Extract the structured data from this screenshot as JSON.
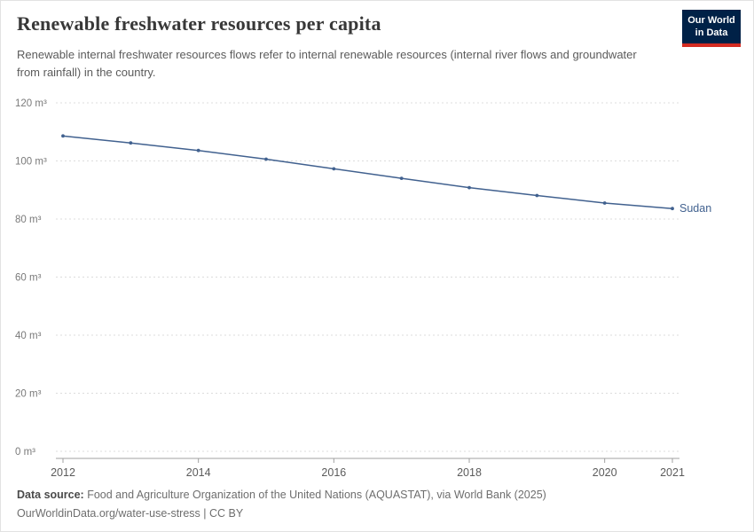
{
  "header": {
    "title": "Renewable freshwater resources per capita",
    "subtitle": "Renewable internal freshwater resources flows refer to internal renewable resources (internal river flows and groundwater from rainfall) in the country.",
    "logo": {
      "line1": "Our World",
      "line2": "in Data",
      "bg_color": "#002147",
      "accent_color": "#d42b21"
    }
  },
  "chart_data": {
    "type": "line",
    "title": "Renewable freshwater resources per capita",
    "x": [
      2012,
      2013,
      2014,
      2015,
      2016,
      2017,
      2018,
      2019,
      2020,
      2021
    ],
    "series": [
      {
        "name": "Sudan",
        "color": "#41618f",
        "values": [
          108.6,
          106.2,
          103.6,
          100.6,
          97.3,
          94.0,
          90.8,
          88.1,
          85.5,
          83.6
        ]
      }
    ],
    "xlabel": "",
    "ylabel": "",
    "ylim": [
      0,
      120
    ],
    "yticks": [
      0,
      20,
      40,
      60,
      80,
      100,
      120
    ],
    "ytick_suffix": " m³",
    "xticks": [
      2012,
      2014,
      2016,
      2018,
      2020,
      2021
    ],
    "grid": true,
    "gridline_color": "#dcdcdc",
    "axis_color": "#a0a0a0",
    "legend_position": "end-of-line"
  },
  "footer": {
    "source_label": "Data source:",
    "source_text": " Food and Agriculture Organization of the United Nations (AQUASTAT), via World Bank (2025)",
    "license": "OurWorldinData.org/water-use-stress | CC BY"
  }
}
